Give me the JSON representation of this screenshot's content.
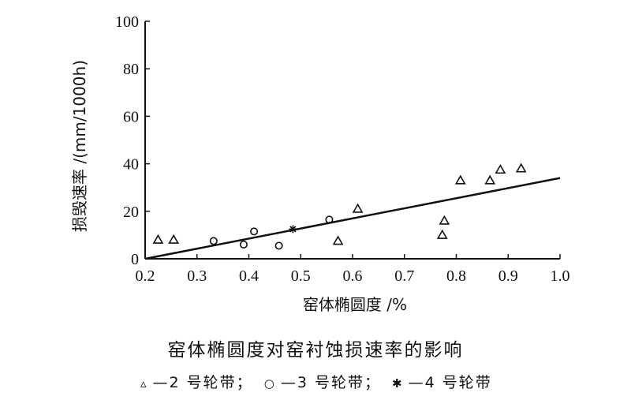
{
  "chart_data": {
    "type": "scatter",
    "title": "窑体椭圆度对窑衬蚀损速率的影响",
    "xlabel": "窑体椭圆度 /%",
    "ylabel": "损毁速率 /(mm/1000h)",
    "xlim": [
      0.2,
      1.0
    ],
    "ylim": [
      0,
      100
    ],
    "xticks": [
      "0.2",
      "0.3",
      "0.4",
      "0.5",
      "0.6",
      "0.7",
      "0.8",
      "0.9",
      "1.0"
    ],
    "yticks": [
      "0",
      "20",
      "40",
      "60",
      "80",
      "100"
    ],
    "grid": false,
    "series": [
      {
        "name": "2 号轮带",
        "marker": "triangle",
        "points": [
          [
            0.225,
            8
          ],
          [
            0.255,
            8
          ],
          [
            0.572,
            7.5
          ],
          [
            0.61,
            21
          ],
          [
            0.773,
            10
          ],
          [
            0.777,
            16
          ],
          [
            0.808,
            33
          ],
          [
            0.865,
            33
          ],
          [
            0.885,
            37.5
          ],
          [
            0.925,
            38
          ]
        ]
      },
      {
        "name": "3 号轮带",
        "marker": "circle",
        "points": [
          [
            0.332,
            7.5
          ],
          [
            0.39,
            6
          ],
          [
            0.41,
            11.5
          ],
          [
            0.458,
            5.5
          ],
          [
            0.555,
            16.5
          ]
        ]
      },
      {
        "name": "4 号轮带",
        "marker": "star",
        "points": [
          [
            0.485,
            12.5
          ]
        ]
      }
    ],
    "fit_line": {
      "from": [
        0.2,
        0
      ],
      "to": [
        1.0,
        34
      ]
    }
  },
  "caption": "窑体椭圆度对窑衬蚀损速率的影响",
  "legend": {
    "item1_symbol": "▵",
    "item1_label": "—2 号轮带；",
    "item2_symbol": "○",
    "item2_label": "—3 号轮带；",
    "item3_symbol": "✱",
    "item3_label": "—4 号轮带"
  }
}
